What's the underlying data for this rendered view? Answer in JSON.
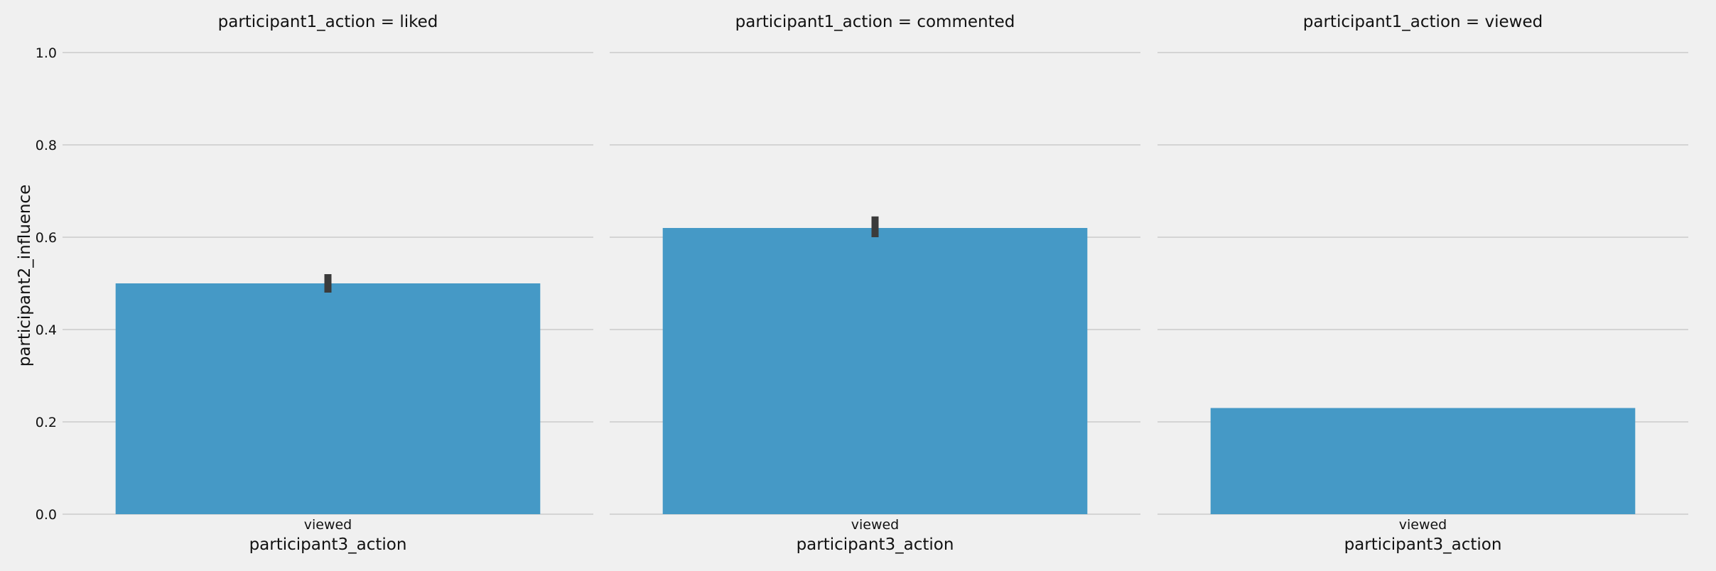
{
  "chart_data": {
    "type": "bar",
    "facet_variable": "participant1_action",
    "ylabel": "participant2_influence",
    "ylim": [
      0,
      1.0
    ],
    "yticks": [
      "0.0",
      "0.2",
      "0.4",
      "0.6",
      "0.8",
      "1.0"
    ],
    "grid": "horizontal",
    "bar_color": "#4599c6",
    "errorbar_color": "#3b3b3b",
    "background_color": "#f0f0f0",
    "gridline_color": "#cbcbcb",
    "panels": [
      {
        "title": "participant1_action = liked",
        "xlabel": "participant3_action",
        "categories": [
          "viewed"
        ],
        "values": [
          0.5
        ],
        "error": [
          [
            0.48,
            0.52
          ]
        ]
      },
      {
        "title": "participant1_action = commented",
        "xlabel": "participant3_action",
        "categories": [
          "viewed"
        ],
        "values": [
          0.62
        ],
        "error": [
          [
            0.6,
            0.645
          ]
        ]
      },
      {
        "title": "participant1_action = viewed",
        "xlabel": "participant3_action",
        "categories": [
          "viewed"
        ],
        "values": [
          0.23
        ],
        "error": null
      }
    ]
  }
}
